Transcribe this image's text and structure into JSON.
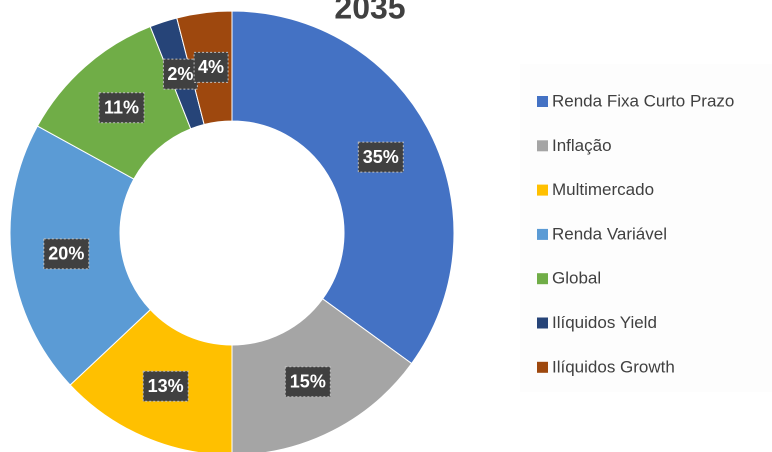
{
  "chart_data": {
    "type": "donut",
    "title": "2035",
    "categories": [
      "Renda Fixa Curto Prazo",
      "Inflação",
      "Multimercado",
      "Renda Variável",
      "Global",
      "Ilíquidos Yield",
      "Ilíquidos Growth"
    ],
    "values": [
      35,
      15,
      13,
      20,
      11,
      2,
      4
    ],
    "value_labels": [
      "35%",
      "15%",
      "13%",
      "20%",
      "11%",
      "2%",
      "4%"
    ],
    "colors": [
      "#4472c4",
      "#a5a5a5",
      "#ffc000",
      "#5b9bd5",
      "#70ad47",
      "#264478",
      "#9e480e"
    ],
    "legend": "right"
  }
}
